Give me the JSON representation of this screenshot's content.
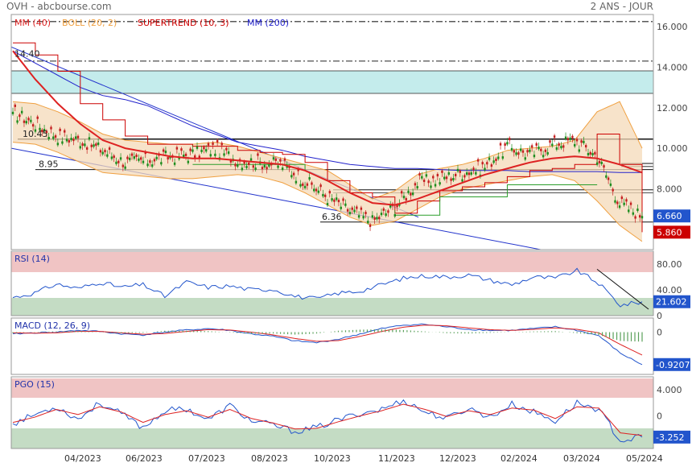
{
  "header": {
    "source": "OVH - abcbourse.com",
    "period": "2 ANS - JOUR"
  },
  "chart_data": [
    {
      "type": "line",
      "panel": "price",
      "legend": [
        {
          "label": "MM (40)",
          "color": "#dd2222"
        },
        {
          "label": "BOLL (20, 2)",
          "color": "#f0a040"
        },
        {
          "label": "SUPERTREND (10, 3)",
          "color": "#cc0000"
        },
        {
          "label": "MM (200)",
          "color": "#2222cc"
        }
      ],
      "ylim": [
        5.0,
        16.6
      ],
      "yticks": [
        "16.000",
        "14.000",
        "12.000",
        "10.000",
        "8.000"
      ],
      "ytick_values": [
        16,
        14,
        12,
        10,
        8
      ],
      "x_labels": [
        "04/2023",
        "06/2023",
        "07/2023",
        "08/2023",
        "10/2023",
        "11/2023",
        "12/2023",
        "02/2024",
        "03/2024",
        "05/2024"
      ],
      "annotations": [
        "14.40",
        "10.45",
        "8.95",
        "6.36"
      ],
      "last_price": {
        "label": "6.660",
        "value": 6.66,
        "color": "#2255cc"
      },
      "supertrend_last": {
        "label": "5.860",
        "value": 5.86,
        "color": "#cc0000"
      },
      "dates": [
        "2023-03-01",
        "2023-03-15",
        "2023-04-01",
        "2023-04-15",
        "2023-05-01",
        "2023-05-15",
        "2023-06-01",
        "2023-06-15",
        "2023-07-01",
        "2023-07-15",
        "2023-08-01",
        "2023-08-15",
        "2023-09-01",
        "2023-09-15",
        "2023-10-01",
        "2023-10-15",
        "2023-11-01",
        "2023-11-15",
        "2023-12-01",
        "2023-12-15",
        "2024-01-01",
        "2024-01-15",
        "2024-02-01",
        "2024-02-15",
        "2024-03-01",
        "2024-03-15",
        "2024-04-01",
        "2024-04-15",
        "2024-05-01"
      ],
      "series": [
        {
          "name": "MM (40)",
          "color": "#dd2222",
          "values": [
            14.8,
            13.4,
            12.2,
            11.2,
            10.4,
            10.0,
            9.8,
            9.6,
            9.5,
            9.5,
            9.4,
            9.3,
            9.2,
            8.9,
            8.4,
            7.8,
            7.3,
            7.2,
            7.5,
            7.9,
            8.3,
            8.7,
            9.0,
            9.3,
            9.5,
            9.6,
            9.5,
            9.2,
            8.8
          ]
        },
        {
          "name": "MM (200)",
          "color": "#2222cc",
          "values": [
            14.8,
            14.2,
            13.6,
            13.0,
            12.6,
            12.4,
            12.1,
            11.6,
            11.1,
            10.7,
            10.3,
            10.1,
            9.9,
            9.6,
            9.4,
            9.2,
            9.1,
            9.0,
            9.0,
            8.95,
            8.9,
            8.9,
            8.9,
            8.85,
            8.85,
            8.85,
            8.85,
            8.8,
            8.8
          ]
        },
        {
          "name": "BOLL upper",
          "color": "#f0a040",
          "values": [
            12.3,
            12.2,
            11.8,
            11.3,
            10.7,
            10.4,
            10.3,
            10.2,
            10.2,
            10.3,
            10.1,
            9.8,
            9.5,
            9.2,
            8.9,
            8.2,
            7.5,
            7.9,
            8.7,
            9.0,
            9.2,
            9.5,
            9.9,
            10.0,
            10.1,
            10.4,
            11.8,
            12.3,
            10.0
          ]
        },
        {
          "name": "BOLL lower",
          "color": "#f0a040",
          "values": [
            10.3,
            10.2,
            9.8,
            9.3,
            8.8,
            8.7,
            8.6,
            8.5,
            8.5,
            8.6,
            8.7,
            8.6,
            8.3,
            7.8,
            7.2,
            6.6,
            6.2,
            6.4,
            7.0,
            7.6,
            8.0,
            8.2,
            8.4,
            8.6,
            8.7,
            8.4,
            7.4,
            6.2,
            5.4
          ]
        },
        {
          "name": "price",
          "color": "#1e7d1e",
          "values": [
            11.8,
            11.2,
            10.6,
            10.4,
            9.9,
            9.3,
            9.4,
            9.6,
            9.7,
            10.0,
            9.4,
            9.3,
            9.2,
            8.4,
            7.6,
            6.9,
            6.4,
            7.1,
            8.3,
            8.5,
            8.8,
            9.1,
            10.1,
            9.7,
            10.2,
            10.4,
            9.6,
            7.3,
            6.66
          ]
        },
        {
          "name": "SUPERTREND",
          "color": "#cc0000",
          "values": [
            15.2,
            14.6,
            13.8,
            12.2,
            11.4,
            10.6,
            10.2,
            10.2,
            10.1,
            10.1,
            9.9,
            9.8,
            9.7,
            9.3,
            8.4,
            7.8,
            7.6,
            6.8,
            7.4,
            7.9,
            8.1,
            8.3,
            8.6,
            8.9,
            9.0,
            9.2,
            10.7,
            9.2,
            5.86
          ]
        }
      ]
    },
    {
      "type": "line",
      "panel": "rsi",
      "label": "RSI (14)",
      "ylim": [
        0,
        100
      ],
      "yticks": [
        "80.00",
        "40.00",
        "0"
      ],
      "ytick_values": [
        80,
        40,
        0
      ],
      "last": {
        "label": "21.602",
        "value": 21.602,
        "color": "#2255cc"
      },
      "series": [
        {
          "name": "RSI",
          "color": "#2255cc",
          "values": [
            28,
            35,
            49,
            42,
            52,
            44,
            48,
            30,
            52,
            44,
            46,
            40,
            41,
            30,
            26,
            35,
            38,
            48,
            58,
            62,
            60,
            63,
            55,
            48,
            60,
            58,
            70,
            50,
            16,
            21.6
          ]
        }
      ]
    },
    {
      "type": "line",
      "panel": "macd",
      "label": "MACD (12, 26, 9)",
      "ylim": [
        -1.2,
        0.4
      ],
      "yticks": [
        "0"
      ],
      "ytick_values": [
        0
      ],
      "last": {
        "label": "-0.9207",
        "value": -0.9207,
        "color": "#2255cc"
      },
      "series": [
        {
          "name": "MACD",
          "color": "#2255cc",
          "values": [
            -0.05,
            -0.02,
            0.0,
            0.05,
            0.02,
            -0.05,
            -0.08,
            0.0,
            0.06,
            0.1,
            0.05,
            -0.05,
            -0.12,
            -0.25,
            -0.3,
            -0.2,
            -0.05,
            0.1,
            0.2,
            0.22,
            0.15,
            0.08,
            0.05,
            0.05,
            0.1,
            0.15,
            0.05,
            -0.1,
            -0.6,
            -0.9207
          ]
        },
        {
          "name": "Signal",
          "color": "#dd2222",
          "values": [
            -0.02,
            -0.03,
            -0.02,
            0.02,
            0.02,
            -0.02,
            -0.06,
            -0.04,
            0.02,
            0.07,
            0.06,
            0.0,
            -0.08,
            -0.18,
            -0.26,
            -0.24,
            -0.12,
            0.02,
            0.14,
            0.2,
            0.18,
            0.12,
            0.07,
            0.05,
            0.08,
            0.12,
            0.08,
            -0.02,
            -0.35,
            -0.65
          ]
        }
      ]
    },
    {
      "type": "line",
      "panel": "pgo",
      "label": "PGO (15)",
      "ylim": [
        -5,
        6
      ],
      "yticks": [
        "4.000",
        "0"
      ],
      "ytick_values": [
        4,
        0
      ],
      "last": {
        "label": "-3.252",
        "value": -3.252,
        "color": "#2255cc"
      },
      "series": [
        {
          "name": "PGO",
          "color": "#2255cc",
          "values": [
            -1.2,
            0.2,
            1.4,
            -0.5,
            2.0,
            0.3,
            -1.8,
            0.8,
            1.1,
            -0.6,
            1.6,
            -0.8,
            -1.4,
            -2.4,
            -1.8,
            -0.6,
            0.4,
            1.0,
            2.4,
            0.6,
            -0.4,
            1.2,
            -0.2,
            1.8,
            0.6,
            -0.8,
            2.0,
            1.0,
            -3.8,
            -3.252
          ]
        },
        {
          "name": "Signal",
          "color": "#dd2222",
          "values": [
            -1.0,
            -0.2,
            1.0,
            0.2,
            1.4,
            0.6,
            -1.0,
            0.2,
            0.8,
            -0.2,
            1.0,
            -0.4,
            -1.1,
            -2.0,
            -1.9,
            -0.9,
            0.0,
            0.8,
            1.8,
            1.0,
            -0.1,
            0.8,
            0.2,
            1.2,
            0.9,
            -0.4,
            1.4,
            1.2,
            -2.6,
            -3.0
          ]
        }
      ]
    }
  ]
}
